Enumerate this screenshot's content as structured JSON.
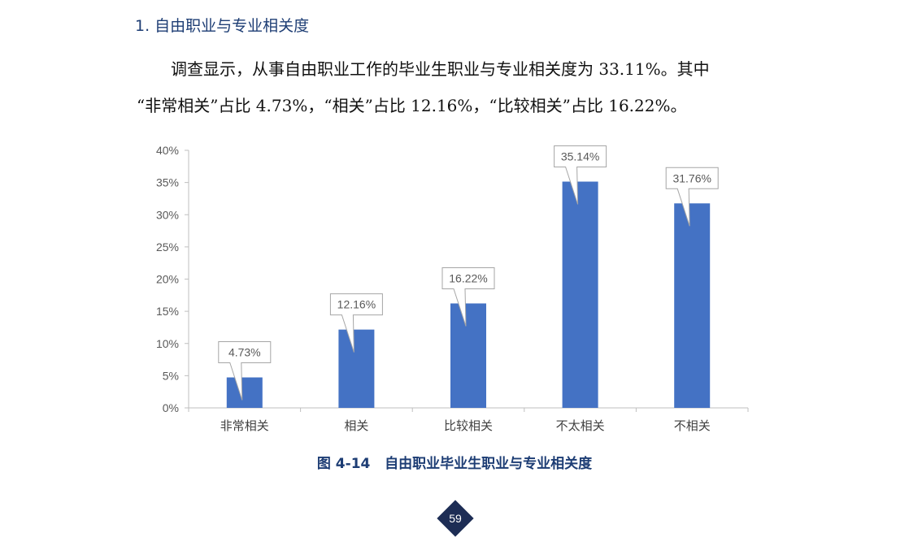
{
  "section_heading": "1. 自由职业与专业相关度",
  "paragraph_line1": "调查显示，从事自由职业工作的毕业生职业与专业相关度为 33.11%。其中",
  "paragraph_line2": "“非常相关”占比 4.73%，“相关”占比 12.16%，“比较相关”占比 16.22%。",
  "figure_caption": "图 4-14   自由职业毕业生职业与专业相关度",
  "page_number": "59",
  "colors": {
    "bar": "#4472c4",
    "heading": "#1d3d74",
    "badge": "#1d2d55"
  },
  "chart_data": {
    "type": "bar",
    "categories": [
      "非常相关",
      "相关",
      "比较相关",
      "不太相关",
      "不相关"
    ],
    "values": [
      4.73,
      12.16,
      16.22,
      35.14,
      31.76
    ],
    "data_labels": [
      "4.73%",
      "12.16%",
      "16.22%",
      "35.14%",
      "31.76%"
    ],
    "y_ticks": [
      "0%",
      "5%",
      "10%",
      "15%",
      "20%",
      "25%",
      "30%",
      "35%",
      "40%"
    ],
    "ylim": [
      0,
      40
    ],
    "grid": false,
    "legend": "none"
  }
}
